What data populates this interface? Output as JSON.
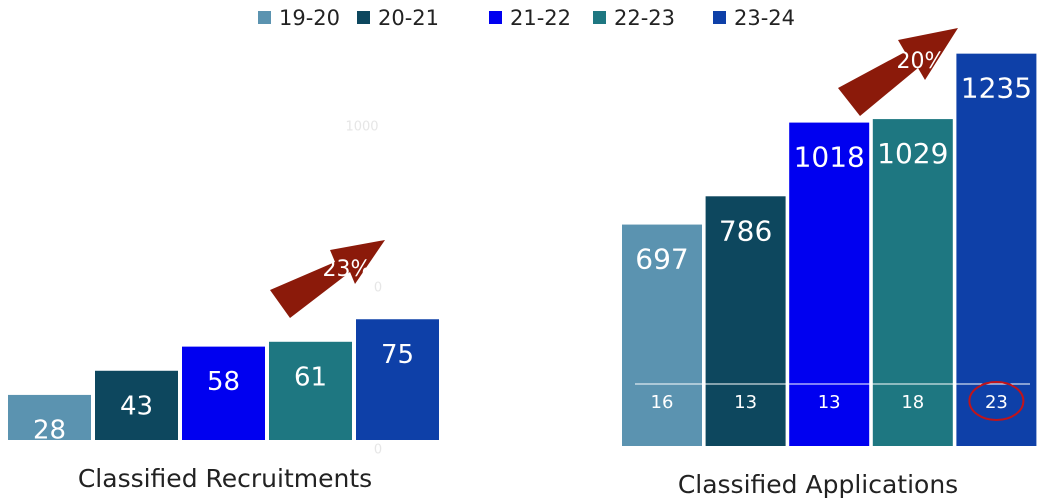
{
  "chart_data": [
    {
      "type": "bar",
      "title": "Classified Recruitments",
      "categories": [
        "19-20",
        "20-21",
        "21-22",
        "22-23",
        "23-24"
      ],
      "colors": [
        "#5b93b0",
        "#0d475e",
        "#0000f0",
        "#1e7781",
        "#0e40a8"
      ],
      "values": [
        28,
        43,
        58,
        61,
        75
      ],
      "ylim": [
        0,
        100
      ],
      "annotation": "23%",
      "background_text": [
        "1000",
        "0",
        "0"
      ]
    },
    {
      "type": "bar",
      "title": "Classified Applications",
      "colors": [
        "#5b93b0",
        "#0d475e",
        "#0000f0",
        "#1e7781",
        "#0e40a8"
      ],
      "values": [
        697,
        786,
        1018,
        1029,
        1235
      ],
      "ylim": [
        0,
        1300
      ],
      "secondary_values": [
        16,
        13,
        13,
        18,
        23
      ],
      "annotation": "20%"
    }
  ]
}
